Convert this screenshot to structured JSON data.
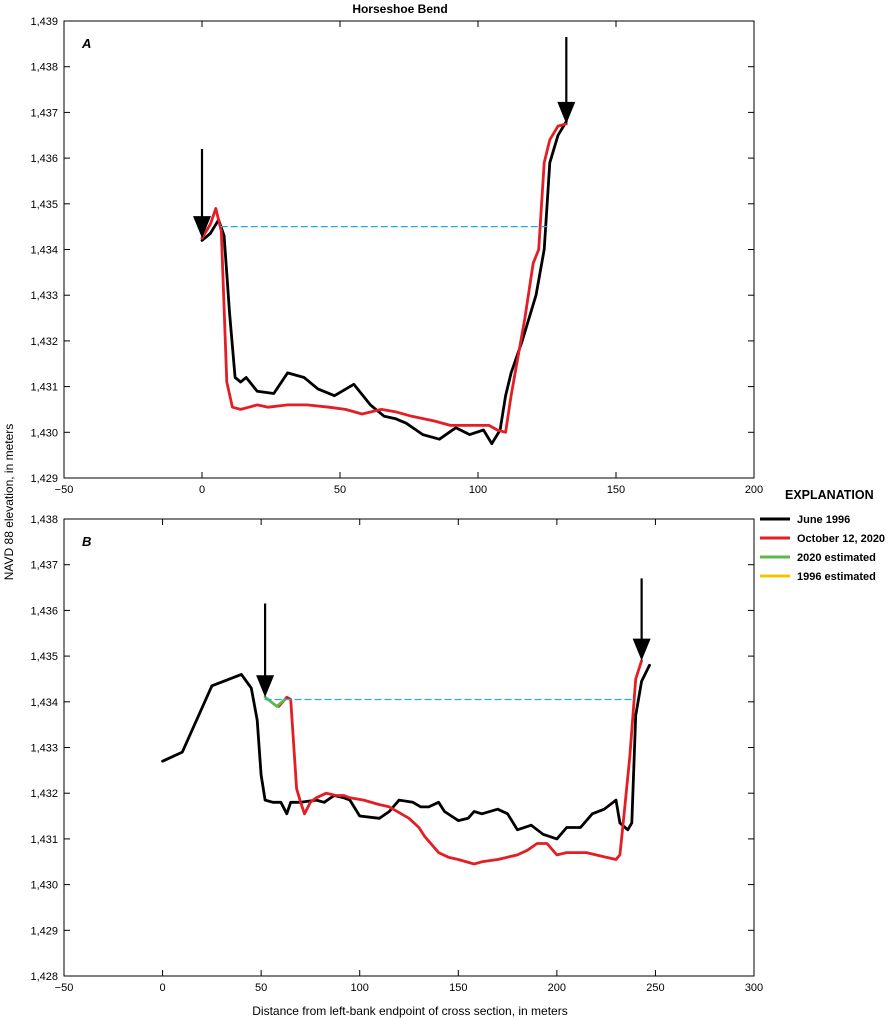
{
  "figure": {
    "title": "Horseshoe Bend",
    "ylabel": "NAVD 88 elevation, in meters",
    "xlabel": "Distance from left-bank endpoint of cross section, in meters"
  },
  "legend": {
    "title": "EXPLANATION",
    "placement": "right",
    "entries": [
      {
        "label": "June 1996",
        "color": "#000000"
      },
      {
        "label": "October 12, 2020",
        "color": "#e31e24"
      },
      {
        "label": "2020 estimated",
        "color": "#5cb946"
      },
      {
        "label": "1996 estimated",
        "color": "#f5c400"
      }
    ]
  },
  "chart_data": [
    {
      "type": "line",
      "panel": "A",
      "xlim": [
        -50,
        200
      ],
      "ylim": [
        1429,
        1439
      ],
      "xticks": [
        -50,
        0,
        50,
        100,
        150,
        200
      ],
      "xtick_labels": [
        "−50",
        "0",
        "50",
        "100",
        "150",
        "200"
      ],
      "yticks": [
        1429,
        1430,
        1431,
        1432,
        1433,
        1434,
        1435,
        1436,
        1437,
        1438,
        1439
      ],
      "ytick_labels": [
        "1,429",
        "1,430",
        "1,431",
        "1,432",
        "1,433",
        "1,434",
        "1,435",
        "1,436",
        "1,437",
        "1,438",
        "1,439"
      ],
      "grid": false,
      "series": [
        {
          "key": "june1996",
          "color": "#000000",
          "x": [
            0,
            3,
            6,
            8,
            10,
            12,
            14,
            16,
            20,
            26,
            31,
            37,
            42,
            48,
            55,
            61,
            66,
            70,
            74,
            80,
            86,
            92,
            97,
            102,
            105,
            108,
            110,
            112,
            116,
            121,
            124,
            126,
            129,
            132
          ],
          "y": [
            1434.2,
            1434.35,
            1434.65,
            1434.3,
            1432.6,
            1431.2,
            1431.1,
            1431.2,
            1430.9,
            1430.85,
            1431.3,
            1431.2,
            1430.95,
            1430.8,
            1431.05,
            1430.6,
            1430.35,
            1430.3,
            1430.2,
            1429.95,
            1429.85,
            1430.1,
            1429.95,
            1430.05,
            1429.75,
            1430.05,
            1430.8,
            1431.3,
            1432,
            1433,
            1434,
            1435.9,
            1436.5,
            1436.8
          ]
        },
        {
          "key": "oct2020",
          "color": "#e31e24",
          "x": [
            0,
            3,
            5,
            7,
            9,
            11,
            14,
            17,
            20,
            24,
            31,
            38,
            46,
            52,
            58,
            65,
            70,
            76,
            84,
            90,
            95,
            100,
            104,
            107,
            110,
            112,
            117,
            120,
            122,
            124,
            126,
            129,
            132
          ],
          "y": [
            1434.25,
            1434.55,
            1434.9,
            1434.4,
            1431.1,
            1430.55,
            1430.5,
            1430.55,
            1430.6,
            1430.55,
            1430.6,
            1430.6,
            1430.55,
            1430.5,
            1430.4,
            1430.5,
            1430.45,
            1430.35,
            1430.25,
            1430.15,
            1430.15,
            1430.15,
            1430.15,
            1430.05,
            1430,
            1430.8,
            1432.5,
            1433.7,
            1434,
            1435.9,
            1436.4,
            1436.7,
            1436.75
          ]
        },
        {
          "key": "waterline",
          "color": "#2aa9d4",
          "dashed": true,
          "x": [
            7,
            125
          ],
          "y": [
            1434.5,
            1434.5
          ]
        }
      ],
      "annotations": [
        {
          "type": "arrow",
          "x": 0,
          "y_from": 1436.2,
          "y_to": 1434.25
        },
        {
          "type": "arrow",
          "x": 132,
          "y_from": 1438.65,
          "y_to": 1436.75
        }
      ]
    },
    {
      "type": "line",
      "panel": "B",
      "xlim": [
        -50,
        300
      ],
      "ylim": [
        1428,
        1438
      ],
      "xticks": [
        -50,
        0,
        50,
        100,
        150,
        200,
        250,
        300
      ],
      "xtick_labels": [
        "−50",
        "0",
        "50",
        "100",
        "150",
        "200",
        "250",
        "300"
      ],
      "yticks": [
        1428,
        1429,
        1430,
        1431,
        1432,
        1433,
        1434,
        1435,
        1436,
        1437,
        1438
      ],
      "ytick_labels": [
        "1,428",
        "1,429",
        "1,430",
        "1,431",
        "1,432",
        "1,433",
        "1,434",
        "1,435",
        "1,436",
        "1,437",
        "1,438"
      ],
      "grid": false,
      "series": [
        {
          "key": "june1996",
          "color": "#000000",
          "x": [
            0,
            10,
            25,
            40,
            45,
            48,
            50,
            52,
            56,
            60,
            63,
            65,
            70,
            78,
            82,
            87,
            92,
            95,
            100,
            110,
            115,
            120,
            127,
            131,
            135,
            140,
            143,
            150,
            155,
            158,
            162,
            170,
            175,
            180,
            187,
            193,
            200,
            205,
            212,
            218,
            224,
            230,
            232,
            236,
            238,
            240,
            243,
            247
          ],
          "y": [
            1432.7,
            1432.9,
            1434.35,
            1434.6,
            1434.3,
            1433.6,
            1432.4,
            1431.85,
            1431.8,
            1431.8,
            1431.55,
            1431.8,
            1431.8,
            1431.85,
            1431.8,
            1431.95,
            1431.9,
            1431.85,
            1431.5,
            1431.45,
            1431.6,
            1431.85,
            1431.8,
            1431.7,
            1431.7,
            1431.8,
            1431.6,
            1431.4,
            1431.45,
            1431.6,
            1431.55,
            1431.65,
            1431.55,
            1431.2,
            1431.3,
            1431.1,
            1431.0,
            1431.25,
            1431.25,
            1431.55,
            1431.65,
            1431.85,
            1431.35,
            1431.2,
            1431.35,
            1433.7,
            1434.45,
            1434.8
          ]
        },
        {
          "key": "oct2020",
          "color": "#e31e24",
          "x": [
            59,
            63,
            65,
            68,
            70,
            72,
            75,
            78,
            83,
            88,
            92,
            95,
            102,
            110,
            115,
            125,
            130,
            133,
            140,
            145,
            150,
            158,
            162,
            170,
            175,
            180,
            185,
            190,
            195,
            200,
            205,
            215,
            225,
            230,
            232,
            234,
            237,
            240,
            243
          ],
          "y": [
            1433.9,
            1434.1,
            1434.05,
            1432.1,
            1431.8,
            1431.55,
            1431.8,
            1431.9,
            1432.0,
            1431.95,
            1431.95,
            1431.9,
            1431.85,
            1431.75,
            1431.7,
            1431.45,
            1431.25,
            1431.05,
            1430.7,
            1430.6,
            1430.55,
            1430.45,
            1430.5,
            1430.55,
            1430.6,
            1430.65,
            1430.75,
            1430.9,
            1430.9,
            1430.65,
            1430.7,
            1430.7,
            1430.6,
            1430.55,
            1430.65,
            1431.5,
            1432.8,
            1434.5,
            1434.9
          ]
        },
        {
          "key": "est2020",
          "color": "#5cb946",
          "x": [
            52,
            58,
            62
          ],
          "y": [
            1434.1,
            1433.9,
            1434.05
          ]
        },
        {
          "key": "waterline",
          "color": "#2aa9d4",
          "dashed": true,
          "x": [
            52,
            240
          ],
          "y": [
            1434.05,
            1434.05
          ]
        }
      ],
      "annotations": [
        {
          "type": "arrow",
          "x": 52,
          "y_from": 1436.15,
          "y_to": 1434.1
        },
        {
          "type": "arrow",
          "x": 243,
          "y_from": 1436.7,
          "y_to": 1434.9
        }
      ]
    }
  ]
}
